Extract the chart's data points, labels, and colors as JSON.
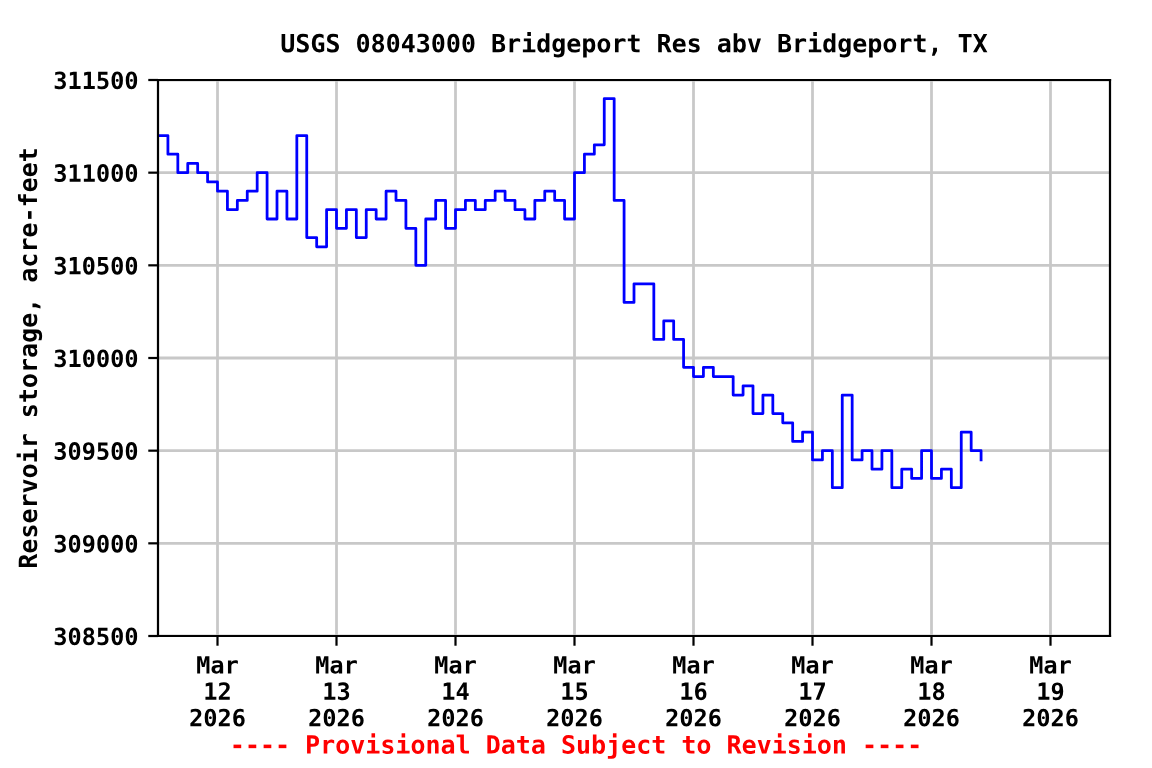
{
  "chart_data": {
    "type": "step",
    "title": "USGS 08043000 Bridgeport Res abv Bridgeport, TX",
    "ylabel": "Reservoir storage, acre-feet",
    "annotations": [
      "---- Provisional Data Subject to Revision ----"
    ],
    "x": [
      "2026-03-11T12:00",
      "2026-03-11T14:00",
      "2026-03-11T16:00",
      "2026-03-11T18:00",
      "2026-03-11T20:00",
      "2026-03-11T22:00",
      "2026-03-12T00:00",
      "2026-03-12T02:00",
      "2026-03-12T04:00",
      "2026-03-12T06:00",
      "2026-03-12T08:00",
      "2026-03-12T10:00",
      "2026-03-12T12:00",
      "2026-03-12T14:00",
      "2026-03-12T16:00",
      "2026-03-12T18:00",
      "2026-03-12T20:00",
      "2026-03-12T22:00",
      "2026-03-13T00:00",
      "2026-03-13T02:00",
      "2026-03-13T04:00",
      "2026-03-13T06:00",
      "2026-03-13T08:00",
      "2026-03-13T10:00",
      "2026-03-13T12:00",
      "2026-03-13T14:00",
      "2026-03-13T16:00",
      "2026-03-13T18:00",
      "2026-03-13T20:00",
      "2026-03-13T22:00",
      "2026-03-14T00:00",
      "2026-03-14T02:00",
      "2026-03-14T04:00",
      "2026-03-14T06:00",
      "2026-03-14T08:00",
      "2026-03-14T10:00",
      "2026-03-14T12:00",
      "2026-03-14T14:00",
      "2026-03-14T16:00",
      "2026-03-14T18:00",
      "2026-03-14T20:00",
      "2026-03-14T22:00",
      "2026-03-15T00:00",
      "2026-03-15T02:00",
      "2026-03-15T04:00",
      "2026-03-15T06:00",
      "2026-03-15T08:00",
      "2026-03-15T10:00",
      "2026-03-15T12:00",
      "2026-03-15T14:00",
      "2026-03-15T16:00",
      "2026-03-15T18:00",
      "2026-03-15T20:00",
      "2026-03-15T22:00",
      "2026-03-16T00:00",
      "2026-03-16T02:00",
      "2026-03-16T04:00",
      "2026-03-16T06:00",
      "2026-03-16T08:00",
      "2026-03-16T10:00",
      "2026-03-16T12:00",
      "2026-03-16T14:00",
      "2026-03-16T16:00",
      "2026-03-16T18:00",
      "2026-03-16T20:00",
      "2026-03-16T22:00",
      "2026-03-17T00:00",
      "2026-03-17T02:00",
      "2026-03-17T04:00",
      "2026-03-17T06:00",
      "2026-03-17T08:00",
      "2026-03-17T10:00",
      "2026-03-17T12:00",
      "2026-03-17T14:00",
      "2026-03-17T16:00",
      "2026-03-17T18:00",
      "2026-03-17T20:00",
      "2026-03-17T22:00",
      "2026-03-18T00:00",
      "2026-03-18T02:00",
      "2026-03-18T04:00",
      "2026-03-18T06:00",
      "2026-03-18T08:00",
      "2026-03-18T10:00"
    ],
    "series": [
      {
        "color": "#0000ff",
        "values": [
          311200,
          311100,
          311000,
          311050,
          311000,
          310950,
          310900,
          310800,
          310850,
          310900,
          311000,
          310750,
          310900,
          310750,
          311200,
          310650,
          310600,
          310800,
          310700,
          310800,
          310650,
          310800,
          310750,
          310900,
          310850,
          310700,
          310500,
          310750,
          310850,
          310700,
          310800,
          310850,
          310800,
          310850,
          310900,
          310850,
          310800,
          310750,
          310850,
          310900,
          310850,
          310750,
          311000,
          311100,
          311150,
          311400,
          310850,
          310300,
          310400,
          310400,
          310100,
          310200,
          310100,
          309950,
          309900,
          309950,
          309900,
          309900,
          309800,
          309850,
          309700,
          309800,
          309700,
          309650,
          309550,
          309600,
          309450,
          309500,
          309300,
          309800,
          309450,
          309500,
          309400,
          309500,
          309300,
          309400,
          309350,
          309500,
          309350,
          309400,
          309300,
          309600,
          309500,
          309450
        ]
      }
    ],
    "xlim": [
      "2026-03-11T12:00",
      "2026-03-19T12:00"
    ],
    "xticks": [
      {
        "value": "2026-03-12",
        "label": "Mar\n12\n2026"
      },
      {
        "value": "2026-03-13",
        "label": "Mar\n13\n2026"
      },
      {
        "value": "2026-03-14",
        "label": "Mar\n14\n2026"
      },
      {
        "value": "2026-03-15",
        "label": "Mar\n15\n2026"
      },
      {
        "value": "2026-03-16",
        "label": "Mar\n16\n2026"
      },
      {
        "value": "2026-03-17",
        "label": "Mar\n17\n2026"
      },
      {
        "value": "2026-03-18",
        "label": "Mar\n18\n2026"
      },
      {
        "value": "2026-03-19",
        "label": "Mar\n19\n2026"
      }
    ],
    "ylim": [
      308500,
      311500
    ],
    "yticks": [
      308500,
      309000,
      309500,
      310000,
      310500,
      311000,
      311500
    ],
    "grid": true,
    "legend": false
  }
}
